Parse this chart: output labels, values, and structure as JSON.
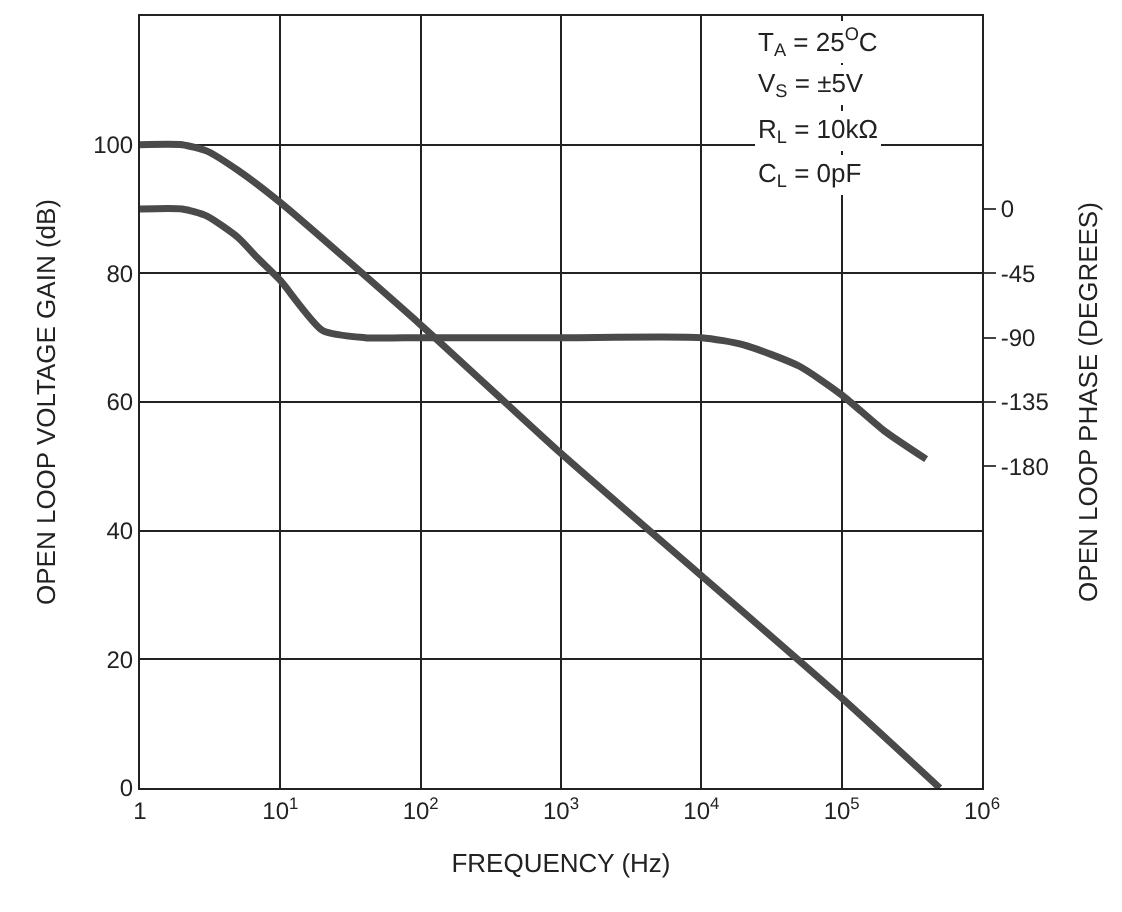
{
  "chart_data": {
    "type": "line",
    "xlabel": "FREQUENCY (Hz)",
    "ylabel": "OPEN LOOP VOLTAGE GAIN (dB)",
    "y2label": "OPEN LOOP PHASE (DEGREES)",
    "annotations": [
      "T$_{A}$ = 25$^{O}$C",
      "V$_{S}$ = ±5V",
      "R$_{L}$ = 10kΩ",
      "C$_{L}$ = 0pF"
    ],
    "log": "x",
    "grid": true,
    "legend": false,
    "marker": "none",
    "line_style": "solid",
    "xlim": [
      1,
      1000000
    ],
    "xticks": [
      1,
      {
        "value": 10,
        "label": "10$^{1}$"
      },
      {
        "value": 100,
        "label": "10$^{2}$"
      },
      {
        "value": 1000,
        "label": "10$^{3}$"
      },
      {
        "value": 10000,
        "label": "10$^{4}$"
      },
      {
        "value": 100000,
        "label": "10$^{5}$"
      },
      {
        "value": 1000000,
        "label": "10$^{6}$"
      }
    ],
    "ylim": [
      0,
      120
    ],
    "yticks": [
      0,
      20,
      40,
      60,
      80,
      100,
      {
        "value": 120,
        "label": null
      }
    ],
    "y2lim": [
      -405,
      135
    ],
    "y2ticks": [
      0,
      -45,
      -90,
      -135,
      -180
    ],
    "series": [
      {
        "color": "#4a4a4a",
        "x": [
          1,
          2,
          3,
          5,
          10,
          100,
          1000,
          10000,
          100000,
          500000
        ],
        "values": [
          100,
          100,
          99,
          96,
          91,
          72,
          52,
          33,
          14,
          0
        ]
      },
      {
        "color": "#4a4a4a",
        "axis": "y2",
        "x": [
          1,
          2,
          3,
          5,
          7,
          10,
          20,
          40,
          100,
          1000,
          10000,
          20000,
          50000,
          100000,
          200000,
          400000
        ],
        "values": [
          0,
          0,
          -5,
          -20,
          -35,
          -50,
          -85,
          -90,
          -90,
          -90,
          -90,
          -95,
          -110,
          -130,
          -155,
          -175
        ]
      }
    ]
  }
}
